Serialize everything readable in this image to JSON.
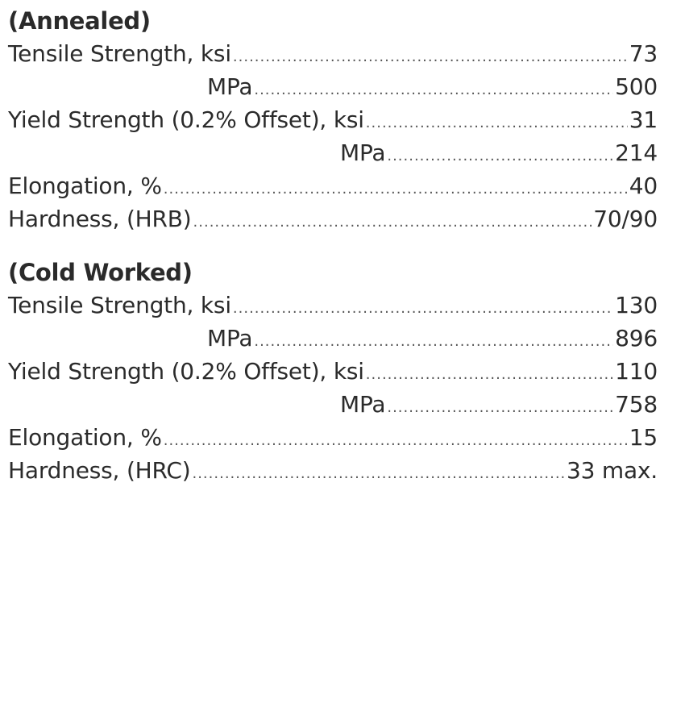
{
  "annealed": {
    "title": "(Annealed)",
    "rows": [
      {
        "label": "Tensile Strength, ksi",
        "value": "73"
      },
      {
        "label": "MPa",
        "value": "500"
      },
      {
        "label": "Yield Strength (0.2% Offset), ksi",
        "value": "31"
      },
      {
        "label": "MPa",
        "value": "214"
      },
      {
        "label": "Elongation, %",
        "value": "40"
      },
      {
        "label": "Hardness, (HRB)",
        "value": "70/90"
      }
    ]
  },
  "cold_worked": {
    "title": "(Cold Worked)",
    "rows": [
      {
        "label": "Tensile Strength, ksi",
        "value": "130"
      },
      {
        "label": "MPa",
        "value": "896"
      },
      {
        "label": "Yield Strength (0.2% Offset), ksi",
        "value": "110"
      },
      {
        "label": "MPa",
        "value": "758"
      },
      {
        "label": "Elongation, %",
        "value": "15"
      },
      {
        "label": "Hardness, (HRC)",
        "value": "33 max."
      }
    ]
  }
}
